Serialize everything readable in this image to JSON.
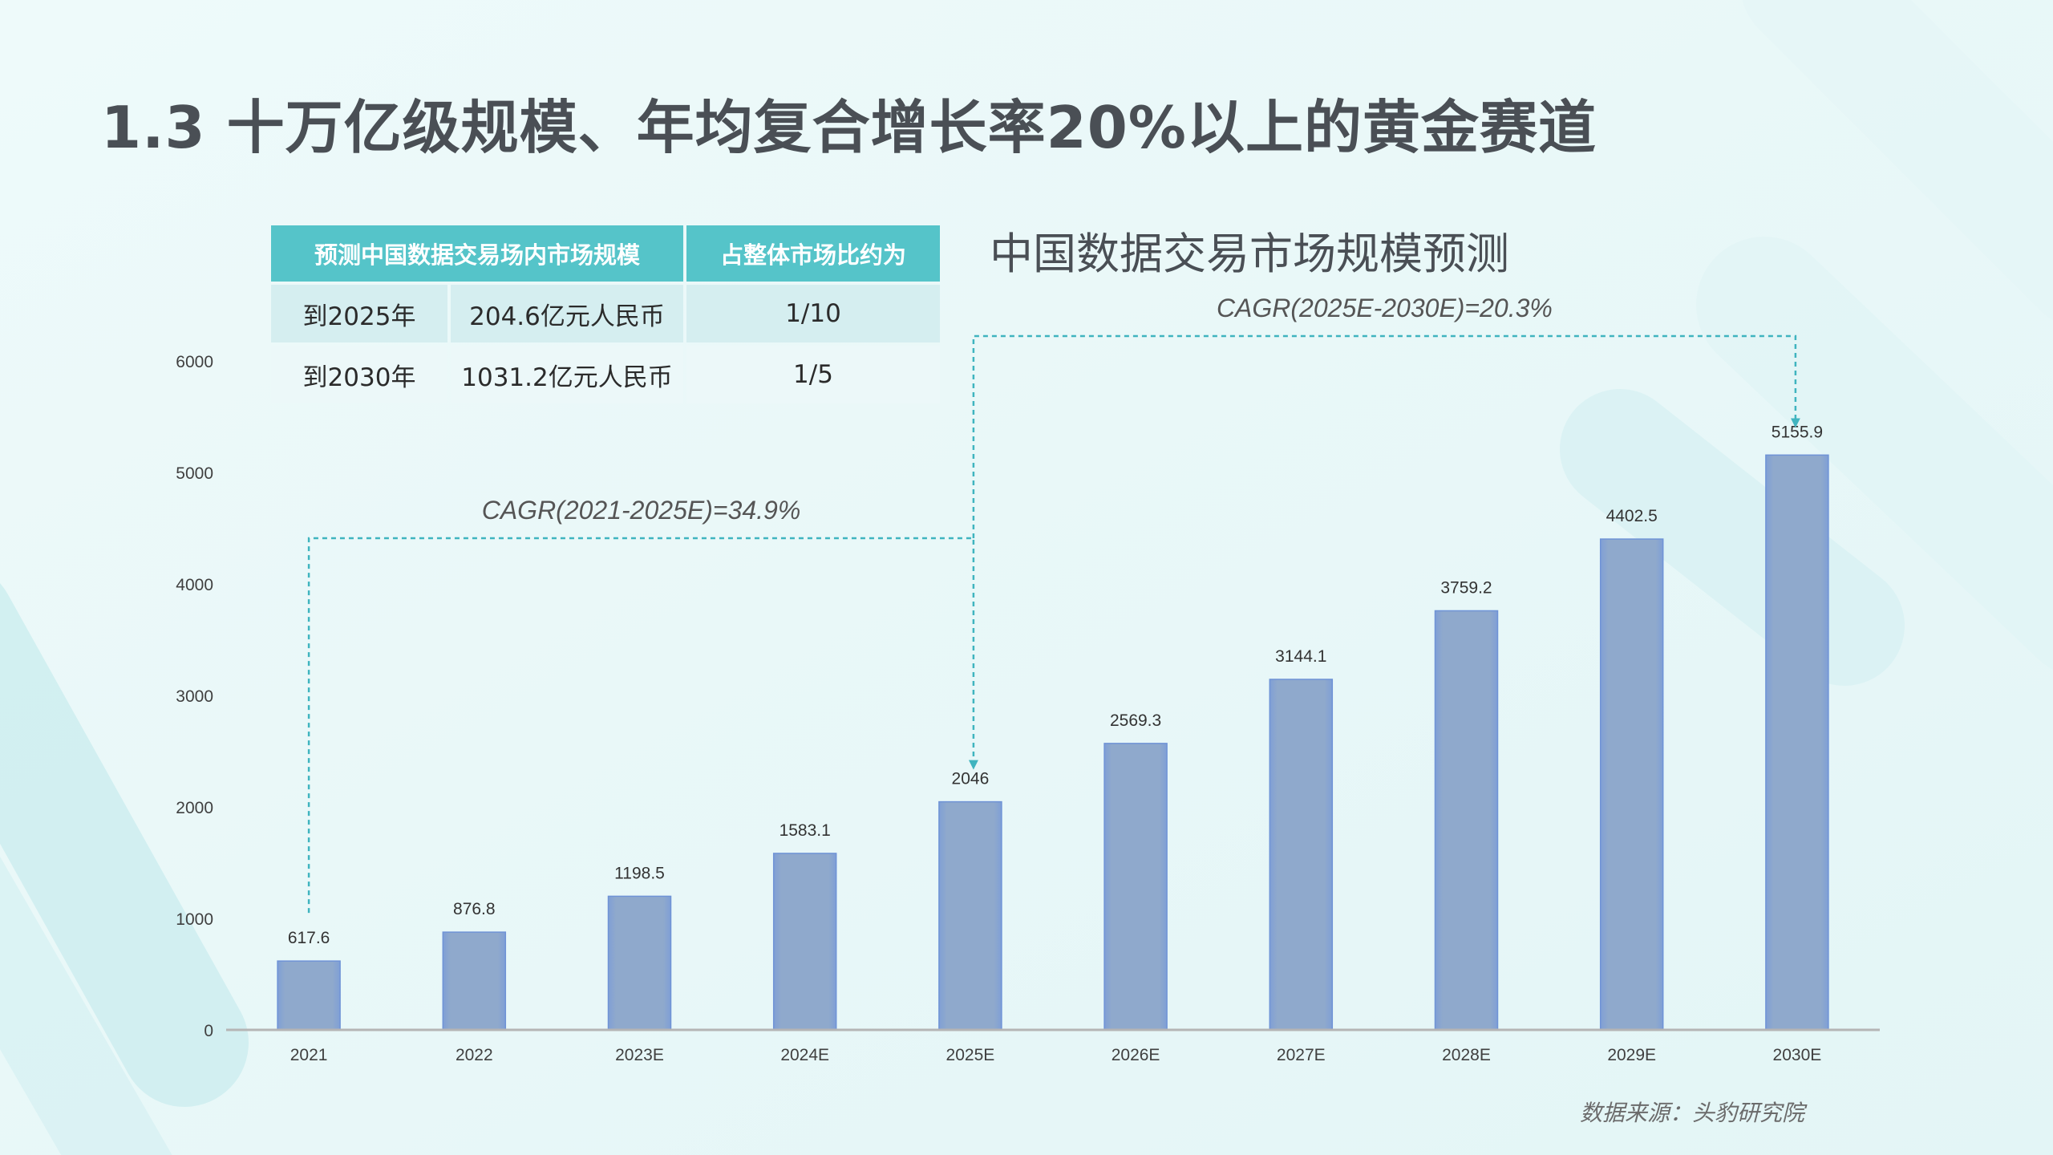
{
  "slide": {
    "title": "1.3 十万亿级规模、年均复合增长率20%以上的黄金赛道",
    "source": "数据来源：头豹研究院"
  },
  "summary_table": {
    "headers": [
      "预测中国数据交易场内市场规模",
      "占整体市场比约为"
    ],
    "rows": [
      {
        "year": "到2025年",
        "value": "204.6亿元人民币",
        "share": "1/10"
      },
      {
        "year": "到2030年",
        "value": "1031.2亿元人民币",
        "share": "1/5"
      }
    ]
  },
  "colors": {
    "bar": "#8fa9cc",
    "bar_edge": "#6f93d6",
    "header": "#55c4c9",
    "arrow": "#3fb4bf",
    "background": "#ecf8f8"
  },
  "chart_data": {
    "type": "bar",
    "title": "中国数据交易市场规模预测",
    "categories": [
      "2021",
      "2022",
      "2023E",
      "2024E",
      "2025E",
      "2026E",
      "2027E",
      "2028E",
      "2029E",
      "2030E"
    ],
    "values": [
      617.6,
      876.8,
      1198.5,
      1583.1,
      2046,
      2569.3,
      3144.1,
      3759.2,
      4402.5,
      5155.9
    ],
    "value_labels": [
      "617.6",
      "876.8",
      "1198.5",
      "1583.1",
      "2046",
      "2569.3",
      "3144.1",
      "3759.2",
      "4402.5",
      "5155.9"
    ],
    "ylim": [
      0,
      6000
    ],
    "yticks": [
      "0",
      "1000",
      "2000",
      "3000",
      "4000",
      "5000",
      "6000"
    ],
    "grid": false,
    "annotations": [
      {
        "text": "CAGR(2021-2025E)=34.9%",
        "from": "2021",
        "to": "2025E"
      },
      {
        "text": "CAGR(2025E-2030E)=20.3%",
        "from": "2025E",
        "to": "2030E"
      }
    ]
  }
}
